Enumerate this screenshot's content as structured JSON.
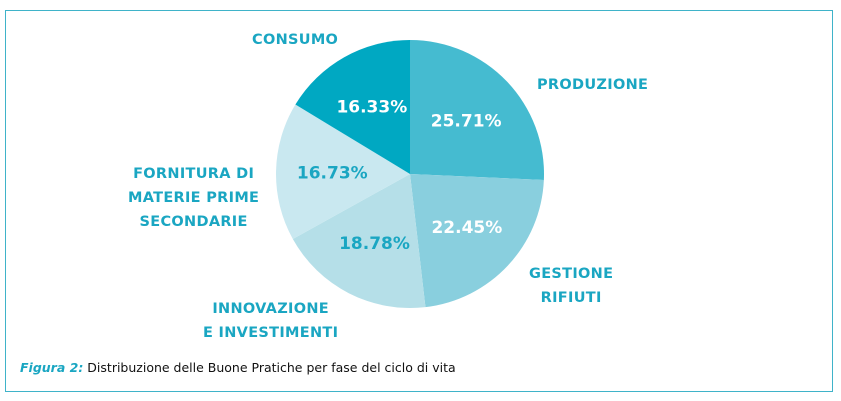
{
  "chart_data": {
    "type": "pie",
    "title": "Distribuzione delle Buone Pratiche per fase del ciclo di vita",
    "start_angle_deg": 0,
    "direction": "clockwise",
    "slices": [
      {
        "label": "PRODUZIONE",
        "value": 25.71,
        "display": "25.71%",
        "color": "#45bbd0",
        "text_color": "#ffffff"
      },
      {
        "label": "GESTIONE RIFIUTI",
        "value": 22.45,
        "display": "22.45%",
        "color": "#89cfde",
        "text_color": "#ffffff"
      },
      {
        "label": "INNOVAZIONE E INVESTIMENTI",
        "value": 18.78,
        "display": "18.78%",
        "color": "#b5dfe8",
        "text_color": "#1aa6c2"
      },
      {
        "label": "FORNITURA DI MATERIE PRIME SECONDARIE",
        "value": 16.73,
        "display": "16.73%",
        "color": "#c9e8f0",
        "text_color": "#1aa6c2"
      },
      {
        "label": "CONSUMO",
        "value": 16.33,
        "display": "16.33%",
        "color": "#00a8c2",
        "text_color": "#ffffff"
      }
    ]
  },
  "labels": {
    "consumo": "CONSUMO",
    "produzione": "PRODUZIONE",
    "fornitura_1": "FORNITURA DI",
    "fornitura_2": "MATERIE PRIME",
    "fornitura_3": "SECONDARIE",
    "gestione_1": "GESTIONE",
    "gestione_2": "RIFIUTI",
    "innovazione_1": "INNOVAZIONE",
    "innovazione_2": "E INVESTIMENTI"
  },
  "caption": {
    "figure_label": "Figura 2:",
    "text": " Distribuzione delle Buone Pratiche per fase del ciclo di vita"
  },
  "colors": {
    "accent": "#1aa6c2",
    "border": "#3fb3c9"
  }
}
